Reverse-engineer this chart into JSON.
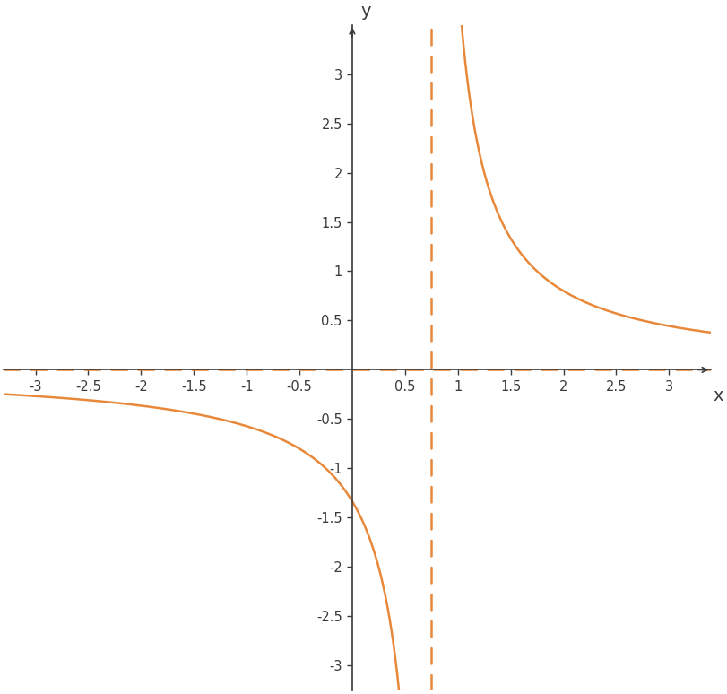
{
  "curve_color": "#E8883A",
  "asymptote_color": "#E8883A",
  "axis_color": "#3a3a3a",
  "grid_color": "#b0b0b0",
  "xlim": [
    -3.3,
    3.4
  ],
  "ylim": [
    -3.25,
    3.5
  ],
  "xticks": [
    -3,
    -2.5,
    -2,
    -1.5,
    -1,
    -0.5,
    0.5,
    1,
    1.5,
    2,
    2.5,
    3
  ],
  "yticks": [
    -3,
    -2.5,
    -2,
    -1.5,
    -1,
    -0.5,
    0.5,
    1,
    1.5,
    2,
    2.5,
    3
  ],
  "xlabel": "x",
  "ylabel": "y",
  "vertical_asymptote": 0.75,
  "horizontal_asymptote": 0.0,
  "line_width": 1.8,
  "asymptote_linewidth": 1.8,
  "background_color": "#ffffff",
  "figsize": [
    8.11,
    7.74
  ],
  "dpi": 100
}
